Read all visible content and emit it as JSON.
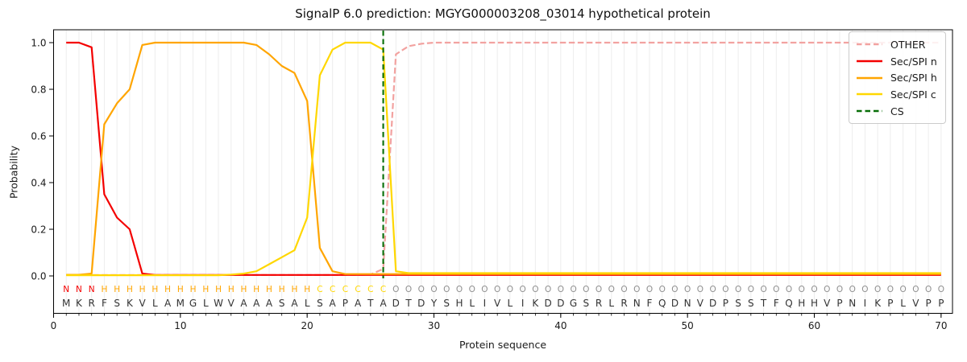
{
  "chart_data": {
    "type": "line",
    "title": "SignalP 6.0 prediction: MGYG000003208_03014 hypothetical protein",
    "xlabel": "Protein sequence",
    "ylabel": "Probability",
    "xlim": [
      0,
      70.9
    ],
    "ylim": [
      -0.16,
      1.06
    ],
    "x_ticks": [
      0,
      10,
      20,
      30,
      40,
      50,
      60,
      70
    ],
    "y_ticks": [
      "0.0",
      "0.2",
      "0.4",
      "0.6",
      "0.8",
      "1.0"
    ],
    "grid": {
      "vertical_minor": true,
      "color": "#ededed"
    },
    "legend": {
      "position": "upper right",
      "entries": [
        "OTHER",
        "Sec/SPI n",
        "Sec/SPI h",
        "Sec/SPI c",
        "CS"
      ]
    },
    "positions_start": 1,
    "series": [
      {
        "name": "OTHER",
        "color": "#f2a2a0",
        "dash": [
          7.5,
          3.5
        ],
        "values": [
          0.004,
          0.004,
          0.004,
          0.004,
          0.004,
          0.004,
          0.004,
          0.004,
          0.004,
          0.004,
          0.004,
          0.004,
          0.004,
          0.004,
          0.004,
          0.004,
          0.004,
          0.004,
          0.004,
          0.004,
          0.004,
          0.004,
          0.004,
          0.004,
          0.006,
          0.03,
          0.95,
          0.985,
          0.995,
          1.0,
          1.0,
          1.0,
          1.0,
          1.0,
          1.0,
          1.0,
          1.0,
          1.0,
          1.0,
          1.0,
          1.0,
          1.0,
          1.0,
          1.0,
          1.0,
          1.0,
          1.0,
          1.0,
          1.0,
          1.0,
          1.0,
          1.0,
          1.0,
          1.0,
          1.0,
          1.0,
          1.0,
          1.0,
          1.0,
          1.0,
          1.0,
          1.0,
          1.0,
          1.0,
          1.0,
          1.0,
          1.0,
          1.0,
          1.0,
          1.0
        ]
      },
      {
        "name": "Sec/SPI n",
        "color": "#f40000",
        "dash": null,
        "values": [
          1.0,
          1.0,
          0.98,
          0.35,
          0.25,
          0.2,
          0.01,
          0.004,
          0.004,
          0.004,
          0.004,
          0.004,
          0.004,
          0.004,
          0.004,
          0.004,
          0.004,
          0.004,
          0.004,
          0.004,
          0.004,
          0.004,
          0.004,
          0.004,
          0.004,
          0.004,
          0.004,
          0.004,
          0.004,
          0.004,
          0.004,
          0.004,
          0.004,
          0.004,
          0.004,
          0.004,
          0.004,
          0.004,
          0.004,
          0.004,
          0.004,
          0.004,
          0.004,
          0.004,
          0.004,
          0.004,
          0.004,
          0.004,
          0.004,
          0.004,
          0.004,
          0.004,
          0.004,
          0.004,
          0.004,
          0.004,
          0.004,
          0.004,
          0.004,
          0.004,
          0.004,
          0.004,
          0.004,
          0.004,
          0.004,
          0.004,
          0.004,
          0.004,
          0.004,
          0.004
        ]
      },
      {
        "name": "Sec/SPI h",
        "color": "#ffa500",
        "dash": null,
        "values": [
          0.005,
          0.005,
          0.01,
          0.65,
          0.74,
          0.8,
          0.99,
          1.0,
          1.0,
          1.0,
          1.0,
          1.0,
          1.0,
          1.0,
          1.0,
          0.99,
          0.95,
          0.9,
          0.87,
          0.75,
          0.12,
          0.02,
          0.008,
          0.008,
          0.008,
          0.008,
          0.008,
          0.008,
          0.008,
          0.008,
          0.008,
          0.008,
          0.008,
          0.008,
          0.008,
          0.008,
          0.008,
          0.008,
          0.008,
          0.008,
          0.008,
          0.008,
          0.008,
          0.008,
          0.008,
          0.008,
          0.008,
          0.008,
          0.008,
          0.008,
          0.008,
          0.008,
          0.008,
          0.008,
          0.008,
          0.008,
          0.008,
          0.008,
          0.008,
          0.008,
          0.008,
          0.008,
          0.008,
          0.008,
          0.008,
          0.008,
          0.008,
          0.008,
          0.008,
          0.008
        ]
      },
      {
        "name": "Sec/SPI c",
        "color": "#ffd700",
        "dash": null,
        "values": [
          0.003,
          0.003,
          0.003,
          0.003,
          0.003,
          0.003,
          0.003,
          0.003,
          0.003,
          0.003,
          0.003,
          0.003,
          0.003,
          0.006,
          0.01,
          0.02,
          0.05,
          0.08,
          0.11,
          0.25,
          0.86,
          0.97,
          1.0,
          1.0,
          1.0,
          0.97,
          0.02,
          0.012,
          0.012,
          0.012,
          0.012,
          0.012,
          0.012,
          0.012,
          0.012,
          0.012,
          0.012,
          0.012,
          0.012,
          0.012,
          0.012,
          0.012,
          0.012,
          0.012,
          0.012,
          0.012,
          0.012,
          0.012,
          0.012,
          0.012,
          0.012,
          0.012,
          0.012,
          0.012,
          0.012,
          0.012,
          0.012,
          0.012,
          0.012,
          0.012,
          0.012,
          0.012,
          0.012,
          0.012,
          0.012,
          0.012,
          0.012,
          0.012,
          0.012,
          0.012
        ]
      }
    ],
    "cs_marker": {
      "name": "CS",
      "position": 26,
      "color": "#076e07",
      "dash": [
        6.5,
        4
      ]
    },
    "sequence": "MKRFSKVLAMGLWVAAASALSAPATADTDYSHLIVLIKDDGSRLRNFQDNVDPSSTFQHHVPNIKPLVPP",
    "region_labels": "NNNHHHHHHHHHHHHHHHHHCCCCCCOOOOOOOOOOOOOOOOOOOOOOOOOOOOOOOOOOOOOOOOOOOO",
    "region_colors": {
      "N": "#f40000",
      "H": "#ffa500",
      "C": "#ffd700",
      "O": "#8f8f8f"
    },
    "residue_color": "#333333"
  }
}
